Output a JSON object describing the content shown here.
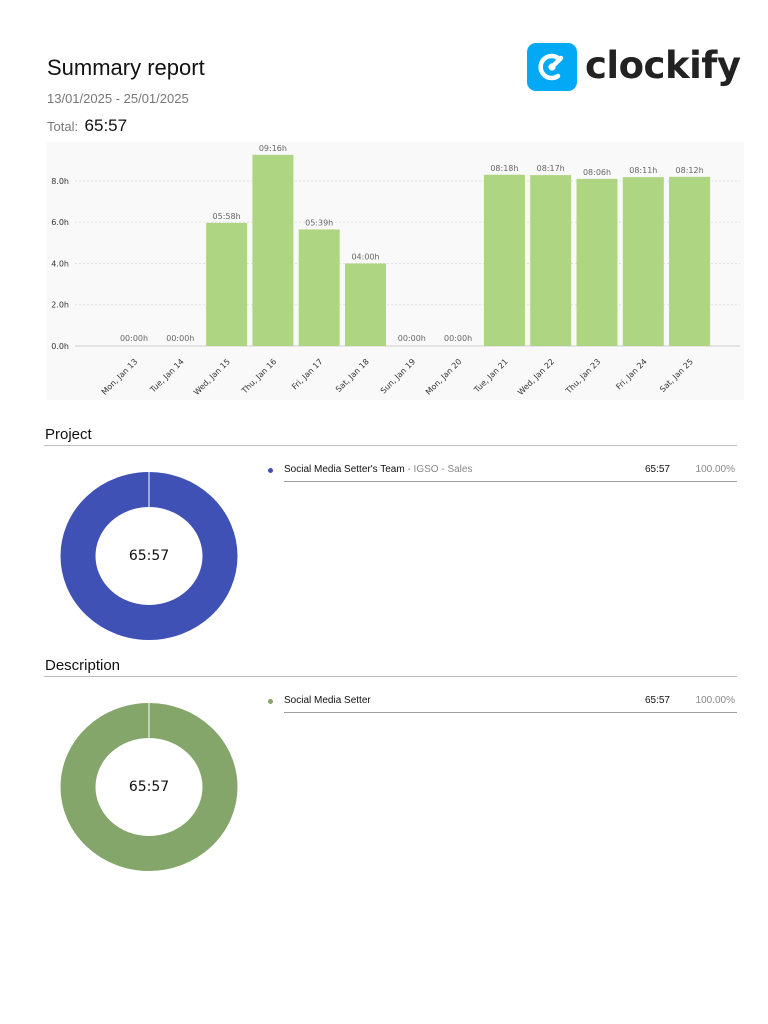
{
  "report": {
    "title": "Summary report",
    "date_range": "13/01/2025 - 25/01/2025",
    "total_label": "Total:",
    "total_value": "65:57"
  },
  "brand": {
    "name": "clockify",
    "logo_icon": "clockify-logo-icon",
    "color": "#03a9f4"
  },
  "chart_data": {
    "type": "bar",
    "categories": [
      "Mon, Jan 13",
      "Tue, Jan 14",
      "Wed, Jan 15",
      "Thu, Jan 16",
      "Fri, Jan 17",
      "Sat, Jan 18",
      "Sun, Jan 19",
      "Mon, Jan 20",
      "Tue, Jan 21",
      "Wed, Jan 22",
      "Thu, Jan 23",
      "Fri, Jan 24",
      "Sat, Jan 25"
    ],
    "values": [
      0,
      0,
      5.967,
      9.267,
      5.65,
      4.0,
      0,
      0,
      8.3,
      8.283,
      8.1,
      8.183,
      8.2
    ],
    "data_labels": [
      "00:00h",
      "00:00h",
      "05:58h",
      "09:16h",
      "05:39h",
      "04:00h",
      "00:00h",
      "00:00h",
      "08:18h",
      "08:17h",
      "08:06h",
      "08:11h",
      "08:12h"
    ],
    "yticks": [
      "0.0h",
      "2.0h",
      "4.0h",
      "6.0h",
      "8.0h"
    ],
    "ytick_values": [
      0,
      2,
      4,
      6,
      8
    ],
    "ylim": [
      0,
      9.5
    ],
    "grid": true,
    "bar_color": "#aed581",
    "title": "",
    "xlabel": "",
    "ylabel": ""
  },
  "project_section": {
    "title": "Project",
    "donut_center": "65:57",
    "color": "#3f51b5",
    "items": [
      {
        "name": "Social Media Setter's Team",
        "sub": " - IGSO - Sales",
        "duration": "65:57",
        "percent": "100.00%",
        "fraction": 1.0
      }
    ]
  },
  "description_section": {
    "title": "Description",
    "donut_center": "65:57",
    "color": "#85a66a",
    "items": [
      {
        "name": "Social Media Setter",
        "duration": "65:57",
        "percent": "100.00%",
        "fraction": 1.0
      }
    ]
  }
}
